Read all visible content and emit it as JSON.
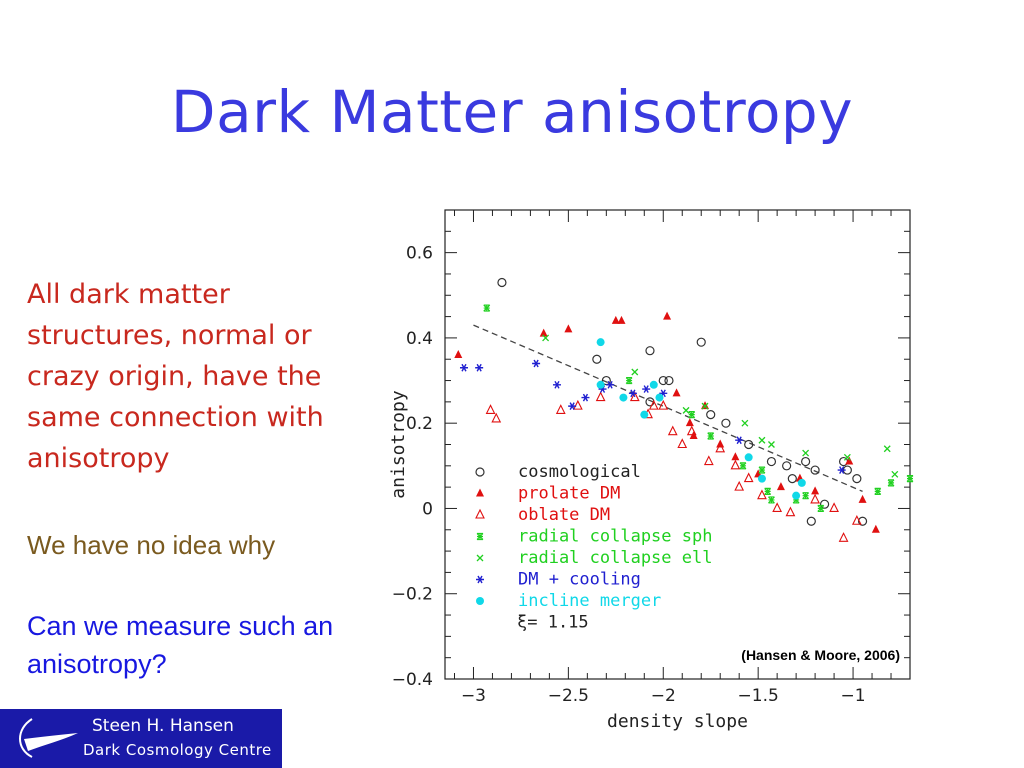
{
  "slide": {
    "title": "Dark Matter anisotropy",
    "statement": "All dark matter structures, normal or crazy origin, have the same connection with anisotropy",
    "aside": "We have no idea why",
    "question": "Can we measure such an anisotropy?"
  },
  "footer": {
    "name": "Steen H. Hansen",
    "organization": "Dark Cosmology Centre"
  },
  "colors": {
    "title": "#3a3adf",
    "statement": "#c8281e",
    "aside": "#7a5a1f",
    "question": "#1818e0",
    "footer_bg": "#1a1aa8"
  },
  "chart_data": {
    "type": "scatter",
    "xlabel": "density slope",
    "ylabel": "anisotropy",
    "xlim": [
      -3.15,
      -0.7
    ],
    "ylim": [
      -0.4,
      0.7
    ],
    "xticks": [
      -3,
      -2.5,
      -2,
      -1.5,
      -1
    ],
    "xtick_labels": [
      "−3",
      "−2.5",
      "−2",
      "−1.5",
      "−1"
    ],
    "yticks": [
      -0.4,
      -0.2,
      0,
      0.2,
      0.4,
      0.6
    ],
    "ytick_labels": [
      "−0.4",
      "−0.2",
      "0",
      "0.2",
      "0.4",
      "0.6"
    ],
    "annotation": "(Hansen & Moore, 2006)",
    "fit_label": "ξ= 1.15",
    "fit_line": {
      "x": [
        -3,
        -0.95
      ],
      "y": [
        0.43,
        0.04
      ]
    },
    "legend_position": "bottom-left",
    "series": [
      {
        "name": "cosmological",
        "marker": "open-circle",
        "color": "#333333",
        "points": [
          [
            -2.85,
            0.53
          ],
          [
            -2.35,
            0.35
          ],
          [
            -2.3,
            0.3
          ],
          [
            -2.07,
            0.37
          ],
          [
            -1.97,
            0.3
          ],
          [
            -1.8,
            0.39
          ],
          [
            -1.75,
            0.22
          ],
          [
            -1.67,
            0.2
          ],
          [
            -1.55,
            0.15
          ],
          [
            -1.43,
            0.11
          ],
          [
            -1.35,
            0.1
          ],
          [
            -1.32,
            0.07
          ],
          [
            -1.25,
            0.11
          ],
          [
            -1.2,
            0.09
          ],
          [
            -1.15,
            0.01
          ],
          [
            -1.05,
            0.11
          ],
          [
            -1.03,
            0.09
          ],
          [
            -0.98,
            0.07
          ],
          [
            -0.95,
            -0.03
          ],
          [
            -1.22,
            -0.03
          ],
          [
            -2.07,
            0.25
          ],
          [
            -2.0,
            0.3
          ]
        ]
      },
      {
        "name": "prolate DM",
        "marker": "filled-triangle",
        "color": "#e01010",
        "points": [
          [
            -3.08,
            0.36
          ],
          [
            -2.63,
            0.41
          ],
          [
            -2.5,
            0.42
          ],
          [
            -2.25,
            0.44
          ],
          [
            -2.22,
            0.44
          ],
          [
            -1.98,
            0.45
          ],
          [
            -1.93,
            0.27
          ],
          [
            -1.86,
            0.2
          ],
          [
            -1.84,
            0.17
          ],
          [
            -1.78,
            0.24
          ],
          [
            -1.7,
            0.15
          ],
          [
            -1.62,
            0.12
          ],
          [
            -1.5,
            0.08
          ],
          [
            -1.38,
            0.05
          ],
          [
            -1.28,
            0.07
          ],
          [
            -1.2,
            0.04
          ],
          [
            -1.02,
            0.11
          ],
          [
            -0.95,
            0.02
          ],
          [
            -0.88,
            -0.05
          ]
        ]
      },
      {
        "name": "oblate DM",
        "marker": "open-triangle",
        "color": "#e01010",
        "points": [
          [
            -2.91,
            0.23
          ],
          [
            -2.88,
            0.21
          ],
          [
            -2.54,
            0.23
          ],
          [
            -2.45,
            0.24
          ],
          [
            -2.33,
            0.26
          ],
          [
            -2.15,
            0.26
          ],
          [
            -2.08,
            0.22
          ],
          [
            -2.05,
            0.24
          ],
          [
            -2.0,
            0.24
          ],
          [
            -1.95,
            0.18
          ],
          [
            -1.9,
            0.15
          ],
          [
            -1.85,
            0.18
          ],
          [
            -1.76,
            0.11
          ],
          [
            -1.7,
            0.14
          ],
          [
            -1.62,
            0.1
          ],
          [
            -1.6,
            0.05
          ],
          [
            -1.55,
            0.07
          ],
          [
            -1.48,
            0.03
          ],
          [
            -1.4,
            0.0
          ],
          [
            -1.33,
            -0.01
          ],
          [
            -1.2,
            0.02
          ],
          [
            -1.1,
            0.0
          ],
          [
            -1.05,
            -0.07
          ],
          [
            -0.98,
            -0.03
          ]
        ]
      },
      {
        "name": "radial collapse sph",
        "marker": "square-star",
        "color": "#20d020",
        "points": [
          [
            -2.93,
            0.47
          ],
          [
            -2.18,
            0.3
          ],
          [
            -1.85,
            0.22
          ],
          [
            -1.75,
            0.17
          ],
          [
            -1.58,
            0.1
          ],
          [
            -1.48,
            0.09
          ],
          [
            -1.45,
            0.04
          ],
          [
            -1.43,
            0.02
          ],
          [
            -1.3,
            0.02
          ],
          [
            -1.25,
            0.03
          ],
          [
            -1.17,
            0.0
          ],
          [
            -0.87,
            0.04
          ],
          [
            -0.8,
            0.06
          ],
          [
            -0.7,
            0.07
          ]
        ]
      },
      {
        "name": "radial collapse ell",
        "marker": "cross",
        "color": "#20d020",
        "points": [
          [
            -2.62,
            0.4
          ],
          [
            -2.15,
            0.32
          ],
          [
            -1.88,
            0.23
          ],
          [
            -1.78,
            0.24
          ],
          [
            -1.57,
            0.2
          ],
          [
            -1.48,
            0.16
          ],
          [
            -1.43,
            0.15
          ],
          [
            -1.25,
            0.13
          ],
          [
            -1.03,
            0.12
          ],
          [
            -0.82,
            0.14
          ],
          [
            -0.78,
            0.08
          ]
        ]
      },
      {
        "name": "DM + cooling",
        "marker": "asterisk",
        "color": "#2020d0",
        "points": [
          [
            -3.05,
            0.33
          ],
          [
            -2.97,
            0.33
          ],
          [
            -2.67,
            0.34
          ],
          [
            -2.56,
            0.29
          ],
          [
            -2.48,
            0.24
          ],
          [
            -2.41,
            0.26
          ],
          [
            -2.32,
            0.28
          ],
          [
            -2.28,
            0.29
          ],
          [
            -2.16,
            0.27
          ],
          [
            -2.09,
            0.28
          ],
          [
            -2.0,
            0.27
          ],
          [
            -1.6,
            0.16
          ],
          [
            -1.06,
            0.09
          ]
        ]
      },
      {
        "name": "incline merger",
        "marker": "filled-circle",
        "color": "#10d8e8",
        "points": [
          [
            -2.33,
            0.39
          ],
          [
            -2.33,
            0.29
          ],
          [
            -2.21,
            0.26
          ],
          [
            -2.1,
            0.22
          ],
          [
            -2.05,
            0.29
          ],
          [
            -2.02,
            0.26
          ],
          [
            -1.55,
            0.12
          ],
          [
            -1.48,
            0.07
          ],
          [
            -1.3,
            0.03
          ],
          [
            -1.27,
            0.06
          ]
        ]
      }
    ]
  }
}
